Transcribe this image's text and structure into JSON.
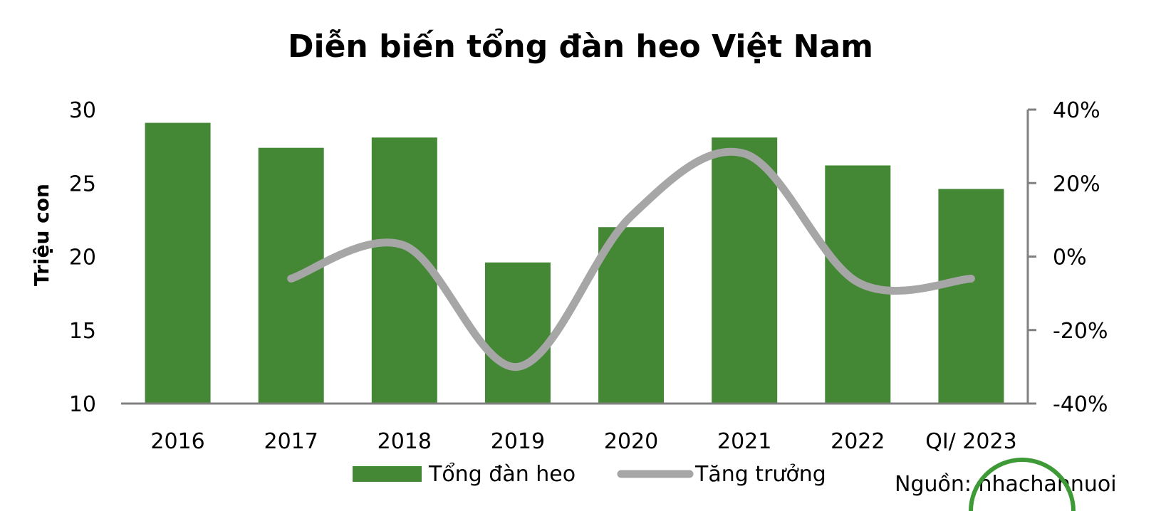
{
  "chart_data": {
    "type": "bar",
    "title": "Diễn biến tổng đàn heo Việt Nam",
    "ylabel": "Triệu con",
    "categories": [
      "2016",
      "2017",
      "2018",
      "2019",
      "2020",
      "2021",
      "2022",
      "QI/ 2023"
    ],
    "ylim": [
      10,
      30
    ],
    "y_ticks": [
      "30",
      "25",
      "20",
      "15",
      "10"
    ],
    "y2lim": [
      -0.4,
      0.4
    ],
    "y2_ticks": [
      "40%",
      "20%",
      "0%",
      "-20%",
      "-40%"
    ],
    "series": [
      {
        "name": "Tổng đàn heo",
        "type": "bar",
        "axis": "left",
        "values": [
          29.1,
          27.4,
          28.1,
          19.6,
          22.0,
          28.1,
          26.2,
          24.6
        ]
      },
      {
        "name": "Tăng trưởng",
        "type": "line",
        "axis": "right",
        "values": [
          null,
          -0.06,
          0.03,
          -0.3,
          0.11,
          0.28,
          -0.07,
          -0.06
        ]
      }
    ],
    "grid": false,
    "legend_position": "bottom-center",
    "source": "Nguồn: nhachannuoi",
    "colors": {
      "bar": "#448836",
      "line": "#a6a6a6",
      "axis": "#808080",
      "logo": "#3d9a36"
    }
  }
}
